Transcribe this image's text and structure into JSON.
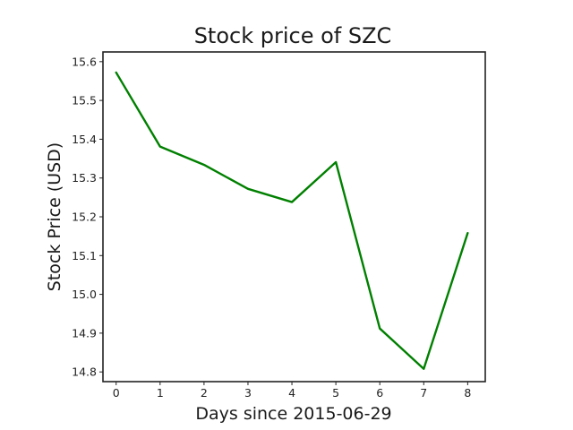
{
  "chart_data": {
    "type": "line",
    "title": "Stock price of SZC",
    "xlabel": "Days since 2015-06-29",
    "ylabel": "Stock Price (USD)",
    "x": [
      0,
      1,
      2,
      3,
      4,
      5,
      6,
      7,
      8
    ],
    "series": [
      {
        "values": [
          15.572,
          15.381,
          15.334,
          15.272,
          15.238,
          15.341,
          14.912,
          14.808,
          15.158
        ],
        "color": "#008000"
      }
    ],
    "xlim": [
      -0.3,
      8.4
    ],
    "ylim": [
      14.775,
      15.625
    ],
    "x_ticks": [
      0,
      1,
      2,
      3,
      4,
      5,
      6,
      7,
      8
    ],
    "x_tick_labels": [
      "0",
      "1",
      "2",
      "3",
      "4",
      "5",
      "6",
      "7",
      "8"
    ],
    "y_ticks": [
      14.8,
      14.9,
      15.0,
      15.1,
      15.2,
      15.3,
      15.4,
      15.5,
      15.6
    ],
    "y_tick_labels": [
      "14.8",
      "14.9",
      "15.0",
      "15.1",
      "15.2",
      "15.3",
      "15.4",
      "15.5",
      "15.6"
    ],
    "grid": false,
    "legend": "none"
  }
}
